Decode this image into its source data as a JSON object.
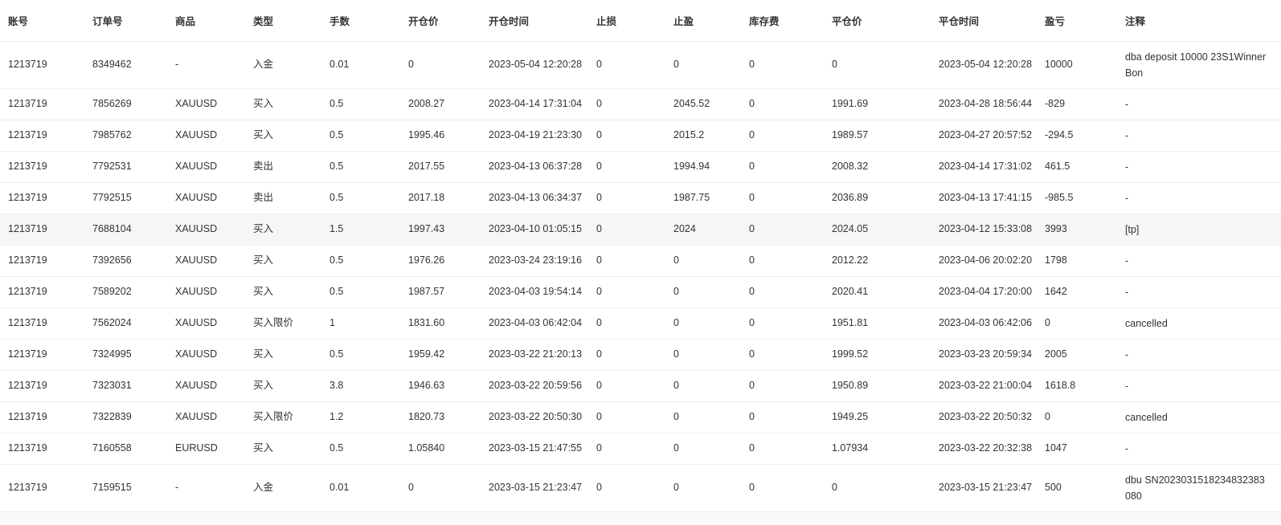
{
  "colors": {
    "header_text": "#333333",
    "cell_text": "#333333",
    "row_border": "#eceef0",
    "highlight_row_bg": "#f5f6f8"
  },
  "table": {
    "columns": [
      {
        "key": "account",
        "label": "账号"
      },
      {
        "key": "order_no",
        "label": "订单号"
      },
      {
        "key": "symbol",
        "label": "商品"
      },
      {
        "key": "type",
        "label": "类型"
      },
      {
        "key": "lots",
        "label": "手数"
      },
      {
        "key": "open_price",
        "label": "开仓价"
      },
      {
        "key": "open_time",
        "label": "开仓时间"
      },
      {
        "key": "stop_loss",
        "label": "止损"
      },
      {
        "key": "take_profit",
        "label": "止盈"
      },
      {
        "key": "storage_fee",
        "label": "库存费"
      },
      {
        "key": "close_price",
        "label": "平仓价"
      },
      {
        "key": "close_time",
        "label": "平仓时间"
      },
      {
        "key": "profit_loss",
        "label": "盈亏"
      },
      {
        "key": "note",
        "label": "注释"
      }
    ],
    "highlighted_row_index": 5,
    "rows": [
      {
        "account": "1213719",
        "order_no": "8349462",
        "symbol": "-",
        "type": "入金",
        "lots": "0.01",
        "open_price": "0",
        "open_time": "2023-05-04 12:20:28",
        "stop_loss": "0",
        "take_profit": "0",
        "storage_fee": "0",
        "close_price": "0",
        "close_time": "2023-05-04 12:20:28",
        "profit_loss": "10000",
        "note": "dba deposit 10000 23S1Winner Bon"
      },
      {
        "account": "1213719",
        "order_no": "7856269",
        "symbol": "XAUUSD",
        "type": "买入",
        "lots": "0.5",
        "open_price": "2008.27",
        "open_time": "2023-04-14 17:31:04",
        "stop_loss": "0",
        "take_profit": "2045.52",
        "storage_fee": "0",
        "close_price": "1991.69",
        "close_time": "2023-04-28 18:56:44",
        "profit_loss": "-829",
        "note": "-"
      },
      {
        "account": "1213719",
        "order_no": "7985762",
        "symbol": "XAUUSD",
        "type": "买入",
        "lots": "0.5",
        "open_price": "1995.46",
        "open_time": "2023-04-19 21:23:30",
        "stop_loss": "0",
        "take_profit": "2015.2",
        "storage_fee": "0",
        "close_price": "1989.57",
        "close_time": "2023-04-27 20:57:52",
        "profit_loss": "-294.5",
        "note": "-"
      },
      {
        "account": "1213719",
        "order_no": "7792531",
        "symbol": "XAUUSD",
        "type": "卖出",
        "lots": "0.5",
        "open_price": "2017.55",
        "open_time": "2023-04-13 06:37:28",
        "stop_loss": "0",
        "take_profit": "1994.94",
        "storage_fee": "0",
        "close_price": "2008.32",
        "close_time": "2023-04-14 17:31:02",
        "profit_loss": "461.5",
        "note": "-"
      },
      {
        "account": "1213719",
        "order_no": "7792515",
        "symbol": "XAUUSD",
        "type": "卖出",
        "lots": "0.5",
        "open_price": "2017.18",
        "open_time": "2023-04-13 06:34:37",
        "stop_loss": "0",
        "take_profit": "1987.75",
        "storage_fee": "0",
        "close_price": "2036.89",
        "close_time": "2023-04-13 17:41:15",
        "profit_loss": "-985.5",
        "note": "-"
      },
      {
        "account": "1213719",
        "order_no": "7688104",
        "symbol": "XAUUSD",
        "type": "买入",
        "lots": "1.5",
        "open_price": "1997.43",
        "open_time": "2023-04-10 01:05:15",
        "stop_loss": "0",
        "take_profit": "2024",
        "storage_fee": "0",
        "close_price": "2024.05",
        "close_time": "2023-04-12 15:33:08",
        "profit_loss": "3993",
        "note": "[tp]"
      },
      {
        "account": "1213719",
        "order_no": "7392656",
        "symbol": "XAUUSD",
        "type": "买入",
        "lots": "0.5",
        "open_price": "1976.26",
        "open_time": "2023-03-24 23:19:16",
        "stop_loss": "0",
        "take_profit": "0",
        "storage_fee": "0",
        "close_price": "2012.22",
        "close_time": "2023-04-06 20:02:20",
        "profit_loss": "1798",
        "note": "-"
      },
      {
        "account": "1213719",
        "order_no": "7589202",
        "symbol": "XAUUSD",
        "type": "买入",
        "lots": "0.5",
        "open_price": "1987.57",
        "open_time": "2023-04-03 19:54:14",
        "stop_loss": "0",
        "take_profit": "0",
        "storage_fee": "0",
        "close_price": "2020.41",
        "close_time": "2023-04-04 17:20:00",
        "profit_loss": "1642",
        "note": "-"
      },
      {
        "account": "1213719",
        "order_no": "7562024",
        "symbol": "XAUUSD",
        "type": "买入限价",
        "lots": "1",
        "open_price": "1831.60",
        "open_time": "2023-04-03 06:42:04",
        "stop_loss": "0",
        "take_profit": "0",
        "storage_fee": "0",
        "close_price": "1951.81",
        "close_time": "2023-04-03 06:42:06",
        "profit_loss": "0",
        "note": "cancelled"
      },
      {
        "account": "1213719",
        "order_no": "7324995",
        "symbol": "XAUUSD",
        "type": "买入",
        "lots": "0.5",
        "open_price": "1959.42",
        "open_time": "2023-03-22 21:20:13",
        "stop_loss": "0",
        "take_profit": "0",
        "storage_fee": "0",
        "close_price": "1999.52",
        "close_time": "2023-03-23 20:59:34",
        "profit_loss": "2005",
        "note": "-"
      },
      {
        "account": "1213719",
        "order_no": "7323031",
        "symbol": "XAUUSD",
        "type": "买入",
        "lots": "3.8",
        "open_price": "1946.63",
        "open_time": "2023-03-22 20:59:56",
        "stop_loss": "0",
        "take_profit": "0",
        "storage_fee": "0",
        "close_price": "1950.89",
        "close_time": "2023-03-22 21:00:04",
        "profit_loss": "1618.8",
        "note": "-"
      },
      {
        "account": "1213719",
        "order_no": "7322839",
        "symbol": "XAUUSD",
        "type": "买入限价",
        "lots": "1.2",
        "open_price": "1820.73",
        "open_time": "2023-03-22 20:50:30",
        "stop_loss": "0",
        "take_profit": "0",
        "storage_fee": "0",
        "close_price": "1949.25",
        "close_time": "2023-03-22 20:50:32",
        "profit_loss": "0",
        "note": "cancelled"
      },
      {
        "account": "1213719",
        "order_no": "7160558",
        "symbol": "EURUSD",
        "type": "买入",
        "lots": "0.5",
        "open_price": "1.05840",
        "open_time": "2023-03-15 21:47:55",
        "stop_loss": "0",
        "take_profit": "0",
        "storage_fee": "0",
        "close_price": "1.07934",
        "close_time": "2023-03-22 20:32:38",
        "profit_loss": "1047",
        "note": "-"
      },
      {
        "account": "1213719",
        "order_no": "7159515",
        "symbol": "-",
        "type": "入金",
        "lots": "0.01",
        "open_price": "0",
        "open_time": "2023-03-15 21:23:47",
        "stop_loss": "0",
        "take_profit": "0",
        "storage_fee": "0",
        "close_price": "0",
        "close_time": "2023-03-15 21:23:47",
        "profit_loss": "500",
        "note": "dbu SN2023031518234832383080"
      }
    ]
  }
}
